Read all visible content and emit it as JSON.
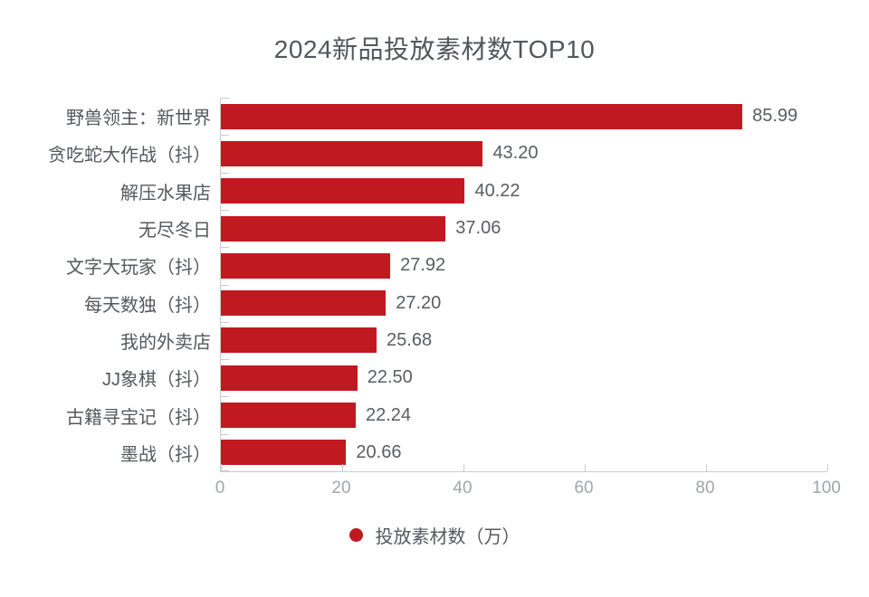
{
  "chart_data": {
    "type": "bar",
    "orientation": "horizontal",
    "title": "2024新品投放素材数TOP10",
    "categories": [
      "野兽领主：新世界",
      "贪吃蛇大作战（抖）",
      "解压水果店",
      "无尽冬日",
      "文字大玩家（抖）",
      "每天数独（抖）",
      "我的外卖店",
      "JJ象棋（抖）",
      "古籍寻宝记（抖）",
      "墨战（抖）"
    ],
    "values": [
      85.99,
      43.2,
      40.22,
      37.06,
      27.92,
      27.2,
      25.68,
      22.5,
      22.24,
      20.66
    ],
    "value_labels": [
      "85.99",
      "43.20",
      "40.22",
      "37.06",
      "27.92",
      "27.20",
      "25.68",
      "22.50",
      "22.24",
      "20.66"
    ],
    "xlabel": "",
    "ylabel": "",
    "xlim": [
      0,
      100
    ],
    "x_ticks": [
      0,
      20,
      40,
      60,
      80,
      100
    ],
    "grid": false,
    "bar_value_position": "right-of-bar",
    "legend": {
      "position": "bottom-center",
      "items": [
        {
          "label": "投放素材数（万）",
          "marker": "circle"
        }
      ]
    },
    "colors": {
      "bar": "#c01a20",
      "title_text": "#53575c",
      "label_text": "#55585c",
      "value_text": "#5a5d60",
      "tick_text": "#a2a5a8",
      "axis_line": "#cccccc",
      "background": "#ffffff"
    }
  }
}
